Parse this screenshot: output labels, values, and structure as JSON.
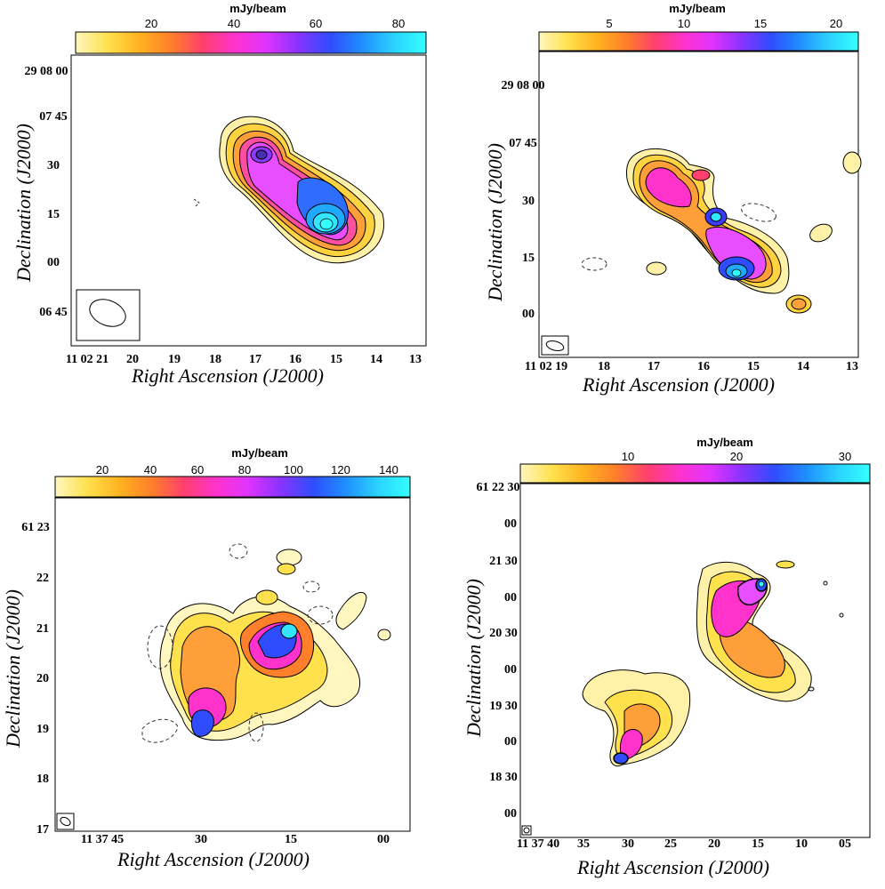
{
  "chart_data": [
    {
      "type": "heatmap",
      "colorbar": {
        "unit": "mJy/beam",
        "ticks": [
          "20",
          "40",
          "60",
          "80"
        ],
        "range": [
          0,
          88
        ]
      },
      "xlabel": "Right Ascension (J2000)",
      "ylabel": "Declination (J2000)",
      "x_ticks": [
        "11 02 21",
        "20",
        "19",
        "18",
        "17",
        "16",
        "15",
        "14",
        "13"
      ],
      "y_ticks": [
        "29 08 00",
        "07 45",
        "30",
        "15",
        "00",
        "06 45"
      ],
      "peak_mJy_per_beam": 85
    },
    {
      "type": "heatmap",
      "colorbar": {
        "unit": "mJy/beam",
        "ticks": [
          "5",
          "10",
          "15",
          "20"
        ],
        "range": [
          0,
          21.5
        ]
      },
      "xlabel": "Right Ascension (J2000)",
      "ylabel": "Declination (J2000)",
      "x_ticks": [
        "11 02 19",
        "18",
        "17",
        "16",
        "15",
        "14",
        "13"
      ],
      "y_ticks": [
        "29 08 00",
        "07 45",
        "30",
        "15",
        "00"
      ],
      "peak_mJy_per_beam": 20
    },
    {
      "type": "heatmap",
      "colorbar": {
        "unit": "mJy/beam",
        "ticks": [
          "20",
          "40",
          "60",
          "80",
          "100",
          "120",
          "140"
        ],
        "range": [
          0,
          150
        ]
      },
      "xlabel": "Right Ascension (J2000)",
      "ylabel": "Declination (J2000)",
      "x_ticks": [
        "11 37 45",
        "30",
        "15",
        "00"
      ],
      "y_ticks": [
        "61 23",
        "22",
        "21",
        "20",
        "19",
        "18",
        "17"
      ],
      "peak_mJy_per_beam": 140
    },
    {
      "type": "heatmap",
      "colorbar": {
        "unit": "mJy/beam",
        "ticks": [
          "10",
          "20",
          "30"
        ],
        "range": [
          0,
          33
        ]
      },
      "xlabel": "Right Ascension (J2000)",
      "ylabel": "Declination (J2000)",
      "x_ticks": [
        "11 37 40",
        "35",
        "30",
        "25",
        "20",
        "15",
        "10",
        "05"
      ],
      "y_ticks": [
        "61 22 30",
        "00",
        "21 30",
        "00",
        "20 30",
        "00",
        "19 30",
        "00",
        "18 30",
        "00"
      ],
      "peak_mJy_per_beam": 32
    }
  ],
  "colors": {
    "colormap": [
      "#ffffff",
      "#fff6c0",
      "#ffe14d",
      "#ffb21f",
      "#ff7f2a",
      "#ff3f6e",
      "#ff33cc",
      "#e033ff",
      "#8833ff",
      "#2f4dff",
      "#1f8fff",
      "#2bd2ff",
      "#33ffff"
    ],
    "contour": "#000000",
    "negative_contour": "#333333"
  }
}
